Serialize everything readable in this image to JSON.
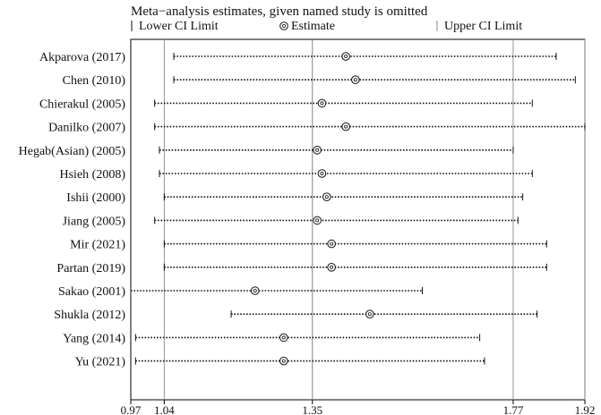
{
  "chart_data": {
    "type": "scatter",
    "title": "Meta−analysis estimates, given named study is omitted",
    "legend": {
      "position": "top",
      "items": [
        {
          "symbol": "bar",
          "label": "Lower CI Limit"
        },
        {
          "symbol": "circle",
          "label": "Estimate"
        },
        {
          "symbol": "bar",
          "label": "Upper CI Limit"
        }
      ]
    },
    "xlim": [
      0.97,
      1.92
    ],
    "xticks": [
      {
        "value": 0.97,
        "label": "0.97"
      },
      {
        "value": 1.04,
        "label": "1.04"
      },
      {
        "value": 1.35,
        "label": "1.35"
      },
      {
        "value": 1.77,
        "label": "1.77"
      },
      {
        "value": 1.92,
        "label": "1.92"
      }
    ],
    "reference_lines": [
      1.04,
      1.35,
      1.77,
      1.92
    ],
    "studies": [
      {
        "label": "Akparova (2017)",
        "lower": 1.06,
        "estimate": 1.42,
        "upper": 1.86
      },
      {
        "label": "Chen (2010)",
        "lower": 1.06,
        "estimate": 1.44,
        "upper": 1.9
      },
      {
        "label": "Chierakul (2005)",
        "lower": 1.02,
        "estimate": 1.37,
        "upper": 1.81
      },
      {
        "label": "Danilko (2007)",
        "lower": 1.02,
        "estimate": 1.42,
        "upper": 1.92
      },
      {
        "label": "Hegab(Asian) (2005)",
        "lower": 1.03,
        "estimate": 1.36,
        "upper": 1.77
      },
      {
        "label": "Hsieh (2008)",
        "lower": 1.03,
        "estimate": 1.37,
        "upper": 1.81
      },
      {
        "label": "Ishii (2000)",
        "lower": 1.04,
        "estimate": 1.38,
        "upper": 1.79
      },
      {
        "label": "Jiang (2005)",
        "lower": 1.02,
        "estimate": 1.36,
        "upper": 1.78
      },
      {
        "label": "Mir (2021)",
        "lower": 1.04,
        "estimate": 1.39,
        "upper": 1.84
      },
      {
        "label": "Partan (2019)",
        "lower": 1.04,
        "estimate": 1.39,
        "upper": 1.84
      },
      {
        "label": "Sakao (2001)",
        "lower": 0.97,
        "estimate": 1.23,
        "upper": 1.58
      },
      {
        "label": "Shukla (2012)",
        "lower": 1.18,
        "estimate": 1.47,
        "upper": 1.82
      },
      {
        "label": "Yang (2014)",
        "lower": 0.98,
        "estimate": 1.29,
        "upper": 1.7
      },
      {
        "label": "Yu (2021)",
        "lower": 0.98,
        "estimate": 1.29,
        "upper": 1.71
      }
    ]
  }
}
